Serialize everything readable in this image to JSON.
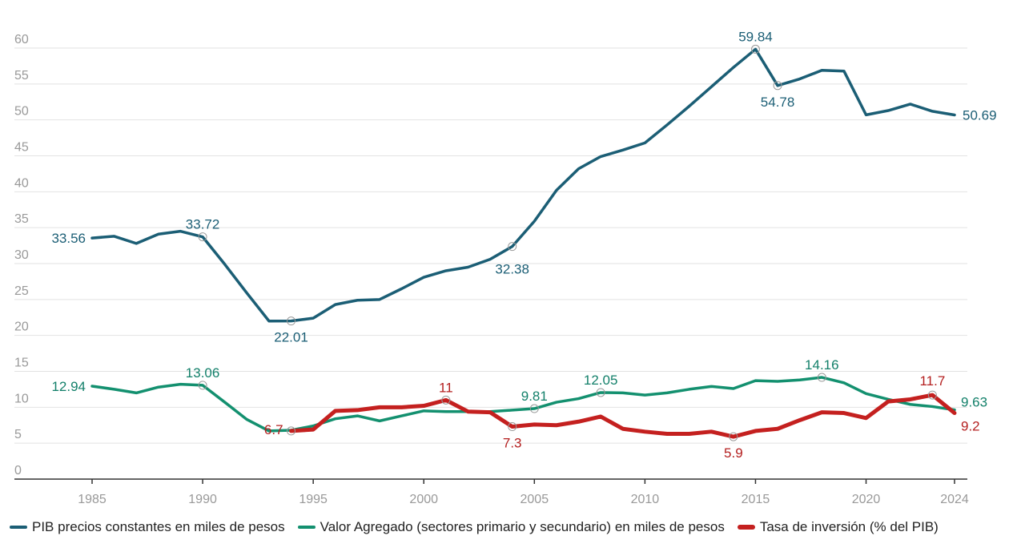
{
  "chart_data": {
    "type": "line",
    "title": "",
    "xlabel": "",
    "ylabel": "",
    "ylim": [
      0,
      60
    ],
    "yticks": [
      0,
      5,
      10,
      15,
      20,
      25,
      30,
      35,
      40,
      45,
      50,
      55,
      60
    ],
    "xlim": [
      1985,
      2024
    ],
    "xticks": [
      1985,
      1990,
      1995,
      2000,
      2005,
      2010,
      2015,
      2020,
      2024
    ],
    "grid": true,
    "legend_position": "bottom",
    "series": [
      {
        "name": "PIB precios constantes en miles de pesos",
        "color": "#1b5e75",
        "x": [
          1985,
          1986,
          1987,
          1988,
          1989,
          1990,
          1991,
          1992,
          1993,
          1994,
          1995,
          1996,
          1997,
          1998,
          1999,
          2000,
          2001,
          2002,
          2003,
          2004,
          2005,
          2006,
          2007,
          2008,
          2009,
          2010,
          2011,
          2012,
          2013,
          2014,
          2015,
          2016,
          2017,
          2018,
          2019,
          2020,
          2021,
          2022,
          2023,
          2024
        ],
        "values": [
          33.56,
          33.8,
          32.8,
          34.1,
          34.5,
          33.72,
          29.9,
          25.9,
          22.0,
          22.01,
          22.4,
          24.3,
          24.9,
          25.0,
          26.5,
          28.1,
          29.0,
          29.5,
          30.6,
          32.38,
          35.9,
          40.2,
          43.2,
          44.9,
          45.8,
          46.8,
          49.3,
          51.9,
          54.6,
          57.3,
          59.84,
          54.78,
          55.7,
          56.9,
          56.8,
          50.7,
          51.3,
          52.2,
          51.2,
          50.69
        ],
        "annotations": [
          {
            "x": 1985,
            "label": "33.56"
          },
          {
            "x": 1990,
            "label": "33.72"
          },
          {
            "x": 1994,
            "label": "22.01"
          },
          {
            "x": 2004,
            "label": "32.38"
          },
          {
            "x": 2015,
            "label": "59.84"
          },
          {
            "x": 2016,
            "label": "54.78"
          },
          {
            "x": 2024,
            "label": "50.69"
          }
        ]
      },
      {
        "name": "Valor Agregado (sectores primario y secundario) en miles de pesos",
        "color": "#13906f",
        "x": [
          1985,
          1986,
          1987,
          1988,
          1989,
          1990,
          1991,
          1992,
          1993,
          1994,
          1995,
          1996,
          1997,
          1998,
          1999,
          2000,
          2001,
          2002,
          2003,
          2004,
          2005,
          2006,
          2007,
          2008,
          2009,
          2010,
          2011,
          2012,
          2013,
          2014,
          2015,
          2016,
          2017,
          2018,
          2019,
          2020,
          2021,
          2022,
          2023,
          2024
        ],
        "values": [
          12.94,
          12.5,
          12.0,
          12.8,
          13.2,
          13.06,
          10.7,
          8.3,
          6.7,
          6.8,
          7.4,
          8.4,
          8.8,
          8.1,
          8.8,
          9.5,
          9.4,
          9.4,
          9.4,
          9.6,
          9.81,
          10.7,
          11.2,
          12.05,
          12.0,
          11.7,
          12.0,
          12.5,
          12.9,
          12.6,
          13.7,
          13.6,
          13.8,
          14.16,
          13.4,
          11.9,
          11.1,
          10.4,
          10.1,
          9.63
        ],
        "annotations": [
          {
            "x": 1985,
            "label": "12.94"
          },
          {
            "x": 1990,
            "label": "13.06"
          },
          {
            "x": 2005,
            "label": "9.81"
          },
          {
            "x": 2008,
            "label": "12.05"
          },
          {
            "x": 2018,
            "label": "14.16"
          },
          {
            "x": 2024,
            "label": "9.63"
          }
        ]
      },
      {
        "name": "Tasa de inversión (% del PIB)",
        "color": "#c4201f",
        "x": [
          1994,
          1995,
          1996,
          1997,
          1998,
          1999,
          2000,
          2001,
          2002,
          2003,
          2004,
          2005,
          2006,
          2007,
          2008,
          2009,
          2010,
          2011,
          2012,
          2013,
          2014,
          2015,
          2016,
          2017,
          2018,
          2019,
          2020,
          2021,
          2022,
          2023,
          2024
        ],
        "values": [
          6.7,
          6.9,
          9.5,
          9.6,
          10.0,
          10.0,
          10.2,
          11,
          9.4,
          9.3,
          7.3,
          7.6,
          7.5,
          8.0,
          8.7,
          7.0,
          6.6,
          6.3,
          6.3,
          6.6,
          5.9,
          6.7,
          7.0,
          8.2,
          9.3,
          9.2,
          8.5,
          10.8,
          11.1,
          11.7,
          9.2
        ],
        "annotations": [
          {
            "x": 1994,
            "label": "6.7"
          },
          {
            "x": 2001,
            "label": "11"
          },
          {
            "x": 2004,
            "label": "7.3"
          },
          {
            "x": 2014,
            "label": "5.9"
          },
          {
            "x": 2023,
            "label": "11.7"
          },
          {
            "x": 2024,
            "label": "9.2"
          }
        ]
      }
    ]
  }
}
